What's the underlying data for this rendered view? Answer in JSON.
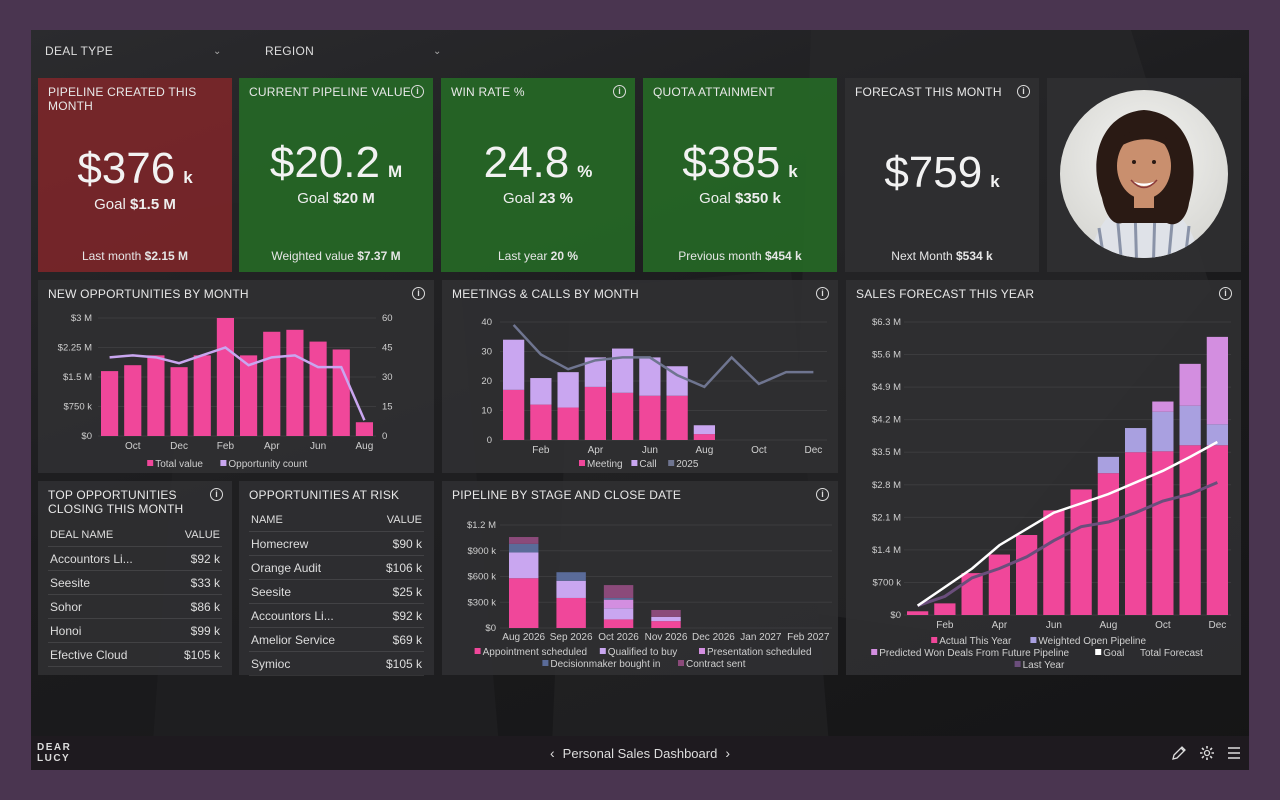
{
  "filters": [
    {
      "label": "DEAL TYPE"
    },
    {
      "label": "REGION"
    }
  ],
  "kpis": [
    {
      "title": "PIPELINE CREATED THIS MONTH",
      "value": "$376",
      "unit": "k",
      "goal_label": "Goal",
      "goal_value": "$1.5 M",
      "foot_label": "Last month",
      "foot_value": "$2.15 M",
      "color": "#85262a",
      "info": false
    },
    {
      "title": "CURRENT PIPELINE VALUE",
      "value": "$20.2",
      "unit": "M",
      "goal_label": "Goal",
      "goal_value": "$20 M",
      "foot_label": "Weighted value",
      "foot_value": "$7.37 M",
      "color": "#266b26",
      "info": true
    },
    {
      "title": "WIN RATE %",
      "value": "24.8",
      "unit": "%",
      "goal_label": "Goal",
      "goal_value": "23 %",
      "foot_label": "Last year",
      "foot_value": "20 %",
      "color": "#266b26",
      "info": true
    },
    {
      "title": "QUOTA ATTAINMENT",
      "value": "$385",
      "unit": "k",
      "goal_label": "Goal",
      "goal_value": "$350 k",
      "foot_label": "Previous month",
      "foot_value": "$454 k",
      "color": "#266b26",
      "info": false
    },
    {
      "title": "FORECAST THIS MONTH",
      "value": "$759",
      "unit": "k",
      "goal_label": "",
      "goal_value": "",
      "foot_label": "Next Month",
      "foot_value": "$534 k",
      "color": "#3a3a3c",
      "info": true
    }
  ],
  "colors": {
    "pink": "#f0479a",
    "lavender": "#c9a6f0",
    "purple_mid": "#a9a0e0",
    "line_gray": "#6f7590",
    "white": "#ffffff",
    "last_year": "#6b4e7c"
  },
  "new_opps": {
    "title": "NEW OPPORTUNITIES BY MONTH",
    "legend": [
      "Total value",
      "Opportunity count"
    ]
  },
  "meetings": {
    "title": "MEETINGS & CALLS BY MONTH",
    "legend": [
      "Meeting",
      "Call",
      "2025"
    ]
  },
  "pipeline_stage": {
    "title": "PIPELINE BY STAGE AND CLOSE DATE",
    "legend": [
      "Appointment scheduled",
      "Qualified to buy",
      "Presentation scheduled",
      "Decisionmaker bought in",
      "Contract sent"
    ]
  },
  "forecast": {
    "title": "SALES FORECAST THIS YEAR",
    "legend": [
      "Actual This Year",
      "Weighted Open Pipeline",
      "Predicted Won Deals From Future Pipeline",
      "Goal",
      "Total Forecast",
      "Last Year"
    ]
  },
  "chart_data": [
    {
      "type": "bar",
      "title": "NEW OPPORTUNITIES BY MONTH",
      "categories": [
        "Sep",
        "Oct",
        "Nov",
        "Dec",
        "Jan",
        "Feb",
        "Mar",
        "Apr",
        "May",
        "Jun",
        "Jul",
        "Aug"
      ],
      "x_tick_labels": [
        "Oct",
        "Dec",
        "Feb",
        "Apr",
        "Jun",
        "Aug"
      ],
      "series": [
        {
          "name": "Total value",
          "kind": "bar",
          "axis": "left",
          "values": [
            1.65,
            1.8,
            2.05,
            1.75,
            2.05,
            3.0,
            2.05,
            2.65,
            2.7,
            2.4,
            2.2,
            0.35
          ]
        },
        {
          "name": "Opportunity count",
          "kind": "line",
          "axis": "right",
          "values": [
            40,
            41,
            40,
            37,
            41,
            45,
            36,
            40,
            41,
            35,
            35,
            8
          ]
        }
      ],
      "y_left_ticks": [
        "$0",
        "$750 k",
        "$1.5 M",
        "$2.25 M",
        "$3 M"
      ],
      "y_right_ticks": [
        "0",
        "15",
        "30",
        "45",
        "60"
      ],
      "ylim": [
        0,
        3
      ],
      "y2lim": [
        0,
        60
      ]
    },
    {
      "type": "bar",
      "title": "MEETINGS & CALLS BY MONTH",
      "categories": [
        "Jan",
        "Feb",
        "Mar",
        "Apr",
        "May",
        "Jun",
        "Jul",
        "Aug",
        "Sep",
        "Oct",
        "Nov",
        "Dec"
      ],
      "x_tick_labels": [
        "Feb",
        "Apr",
        "Jun",
        "Aug",
        "Oct",
        "Dec"
      ],
      "series": [
        {
          "name": "Meeting",
          "kind": "stacked_bar",
          "values": [
            17,
            12,
            11,
            18,
            16,
            15,
            15,
            2,
            null,
            null,
            null,
            null
          ]
        },
        {
          "name": "Call",
          "kind": "stacked_bar",
          "values": [
            17,
            9,
            12,
            10,
            15,
            13,
            10,
            3,
            null,
            null,
            null,
            null
          ]
        },
        {
          "name": "2025",
          "kind": "line",
          "values": [
            39,
            29,
            24,
            27,
            28,
            28,
            22,
            18,
            28,
            19,
            23,
            23
          ]
        }
      ],
      "y_ticks": [
        "0",
        "10",
        "20",
        "30",
        "40"
      ],
      "ylim": [
        0,
        40
      ]
    },
    {
      "type": "bar",
      "title": "PIPELINE BY STAGE AND CLOSE DATE",
      "categories": [
        "Aug 2026",
        "Sep 2026",
        "Oct 2026",
        "Nov 2026",
        "Dec 2026",
        "Jan 2027",
        "Feb 2027"
      ],
      "series": [
        {
          "name": "Appointment scheduled",
          "values": [
            580,
            350,
            100,
            80,
            0,
            0,
            0
          ]
        },
        {
          "name": "Qualified to buy",
          "values": [
            300,
            200,
            130,
            50,
            0,
            0,
            0
          ]
        },
        {
          "name": "Presentation scheduled",
          "values": [
            0,
            0,
            100,
            0,
            0,
            0,
            0
          ]
        },
        {
          "name": "Decisionmaker bought in",
          "values": [
            100,
            100,
            20,
            0,
            0,
            0,
            0
          ]
        },
        {
          "name": "Contract sent",
          "values": [
            80,
            0,
            150,
            80,
            0,
            0,
            0
          ]
        }
      ],
      "y_ticks": [
        "$0",
        "$300 k",
        "$600 k",
        "$900 k",
        "$1.2 M"
      ],
      "ylim": [
        0,
        1200
      ]
    },
    {
      "type": "bar",
      "title": "SALES FORECAST THIS YEAR",
      "categories": [
        "Jan",
        "Feb",
        "Mar",
        "Apr",
        "May",
        "Jun",
        "Jul",
        "Aug",
        "Sep",
        "Oct",
        "Nov",
        "Dec"
      ],
      "x_tick_labels": [
        "Feb",
        "Apr",
        "Jun",
        "Aug",
        "Oct",
        "Dec"
      ],
      "series": [
        {
          "name": "Actual This Year",
          "kind": "stacked_bar",
          "values": [
            0.08,
            0.25,
            0.9,
            1.3,
            1.72,
            2.25,
            2.7,
            3.05,
            3.5,
            3.52,
            3.65,
            3.65
          ]
        },
        {
          "name": "Weighted Open Pipeline",
          "kind": "stacked_bar",
          "values": [
            0,
            0,
            0,
            0,
            0,
            0,
            0,
            0.35,
            0.52,
            0.85,
            0.85,
            0.45
          ]
        },
        {
          "name": "Predicted Won Deals From Future Pipeline",
          "kind": "stacked_bar",
          "values": [
            0,
            0,
            0,
            0,
            0,
            0,
            0,
            0,
            0,
            0.22,
            0.9,
            1.88
          ]
        },
        {
          "name": "Goal",
          "kind": "line",
          "values": [
            0.2,
            0.6,
            1.0,
            1.5,
            1.85,
            2.2,
            2.4,
            2.6,
            2.85,
            3.1,
            3.4,
            3.72
          ]
        },
        {
          "name": "Last Year",
          "kind": "line",
          "values": [
            0.2,
            0.4,
            0.8,
            1.0,
            1.25,
            1.6,
            1.9,
            2.0,
            2.2,
            2.45,
            2.6,
            2.85
          ]
        }
      ],
      "y_ticks": [
        "$0",
        "$700 k",
        "$1.4 M",
        "$2.1 M",
        "$2.8 M",
        "$3.5 M",
        "$4.2 M",
        "$4.9 M",
        "$5.6 M",
        "$6.3 M"
      ],
      "ylim": [
        0,
        6.3
      ]
    }
  ],
  "top_opportunities": {
    "title": "TOP OPPORTUNITIES CLOSING THIS MONTH",
    "col_name": "DEAL NAME",
    "col_value": "VALUE",
    "rows": [
      {
        "name": "Accountors Li...",
        "value": "$92 k"
      },
      {
        "name": "Seesite",
        "value": "$33 k"
      },
      {
        "name": "Sohor",
        "value": "$86 k"
      },
      {
        "name": "Honoi",
        "value": "$99 k"
      },
      {
        "name": "Efective Cloud",
        "value": "$105 k"
      }
    ]
  },
  "at_risk": {
    "title": "OPPORTUNITIES AT RISK",
    "col_name": "NAME",
    "col_value": "VALUE",
    "rows": [
      {
        "name": "Homecrew",
        "value": "$90 k"
      },
      {
        "name": "Orange Audit",
        "value": "$106 k"
      },
      {
        "name": "Seesite",
        "value": "$25 k"
      },
      {
        "name": "Accountors Li...",
        "value": "$92 k"
      },
      {
        "name": "Amelior Service",
        "value": "$69 k"
      },
      {
        "name": "Symioc",
        "value": "$105 k"
      }
    ]
  },
  "bottom": {
    "logo_line1": "DEAR",
    "logo_line2": "LUCY",
    "title": "Personal Sales Dashboard"
  }
}
